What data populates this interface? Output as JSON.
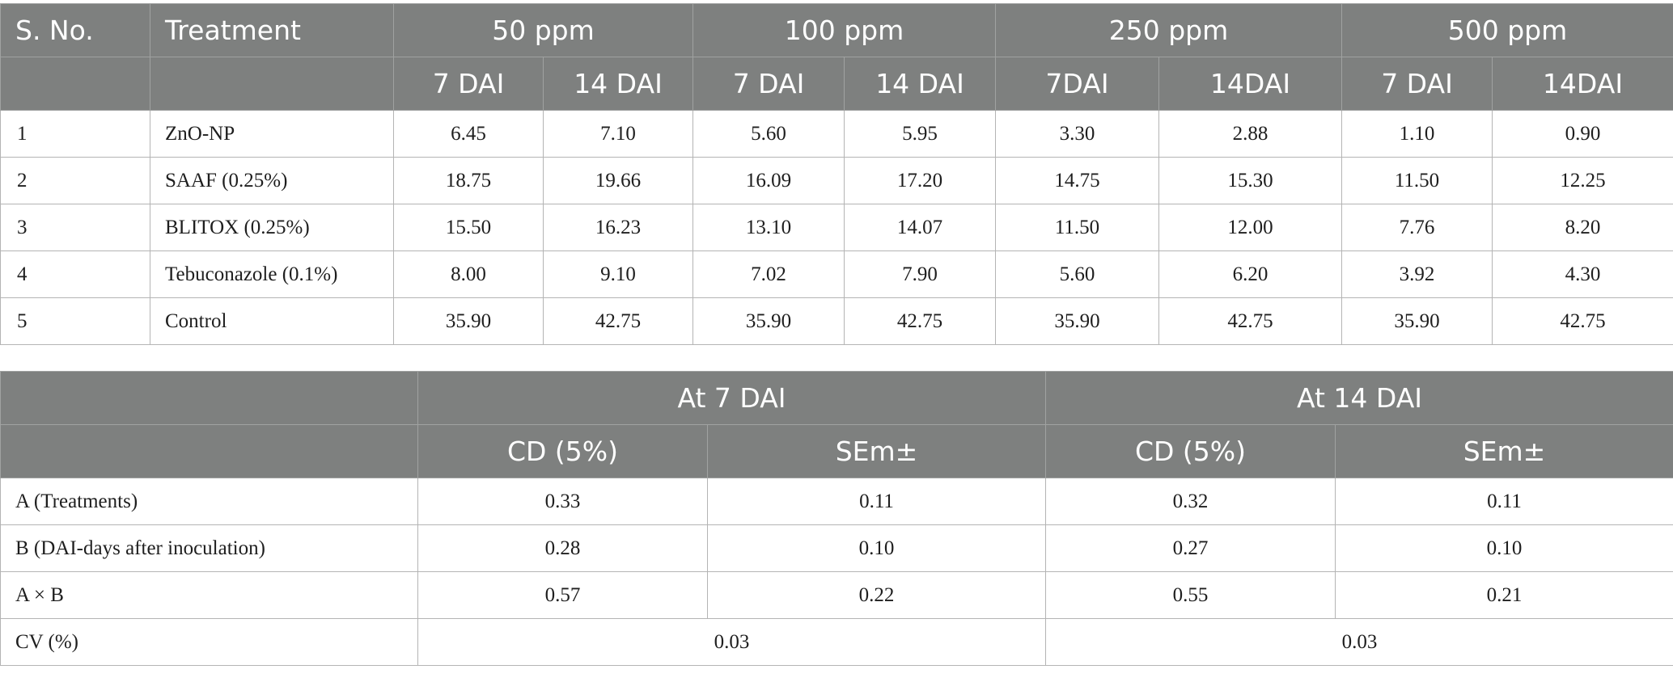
{
  "table1": {
    "header_sno": "S. No.",
    "header_treatment": "Treatment",
    "concentrations": [
      "50 ppm",
      "100 ppm",
      "250 ppm",
      "500 ppm"
    ],
    "sub_headers": [
      "7 DAI",
      "14 DAI",
      "7 DAI",
      "14 DAI",
      "7DAI",
      "14DAI",
      "7 DAI",
      "14DAI"
    ],
    "rows": [
      {
        "sno": "1",
        "treatment": "ZnO-NP",
        "values": [
          "6.45",
          "7.10",
          "5.60",
          "5.95",
          "3.30",
          "2.88",
          "1.10",
          "0.90"
        ]
      },
      {
        "sno": "2",
        "treatment": "SAAF (0.25%)",
        "values": [
          "18.75",
          "19.66",
          "16.09",
          "17.20",
          "14.75",
          "15.30",
          "11.50",
          "12.25"
        ]
      },
      {
        "sno": "3",
        "treatment": "BLITOX (0.25%)",
        "values": [
          "15.50",
          "16.23",
          "13.10",
          "14.07",
          "11.50",
          "12.00",
          "7.76",
          "8.20"
        ]
      },
      {
        "sno": "4",
        "treatment": "Tebuconazole (0.1%)",
        "values": [
          "8.00",
          "9.10",
          "7.02",
          "7.90",
          "5.60",
          "6.20",
          "3.92",
          "4.30"
        ]
      },
      {
        "sno": "5",
        "treatment": "Control",
        "values": [
          "35.90",
          "42.75",
          "35.90",
          "42.75",
          "35.90",
          "42.75",
          "35.90",
          "42.75"
        ]
      }
    ]
  },
  "table2": {
    "groups": [
      "At 7 DAI",
      "At 14 DAI"
    ],
    "sub_headers": [
      "CD (5%)",
      "SEm±",
      "CD (5%)",
      "SEm±"
    ],
    "rows": [
      {
        "label": "A (Treatments)",
        "values": [
          "0.33",
          "0.11",
          "0.32",
          "0.11"
        ]
      },
      {
        "label": "B (DAI-days after inoculation)",
        "values": [
          "0.28",
          "0.10",
          "0.27",
          "0.10"
        ]
      },
      {
        "label": "A × B",
        "values": [
          "0.57",
          "0.22",
          "0.55",
          "0.21"
        ]
      }
    ],
    "cv": {
      "label": "CV (%)",
      "values": [
        "0.03",
        "0.03"
      ]
    }
  }
}
